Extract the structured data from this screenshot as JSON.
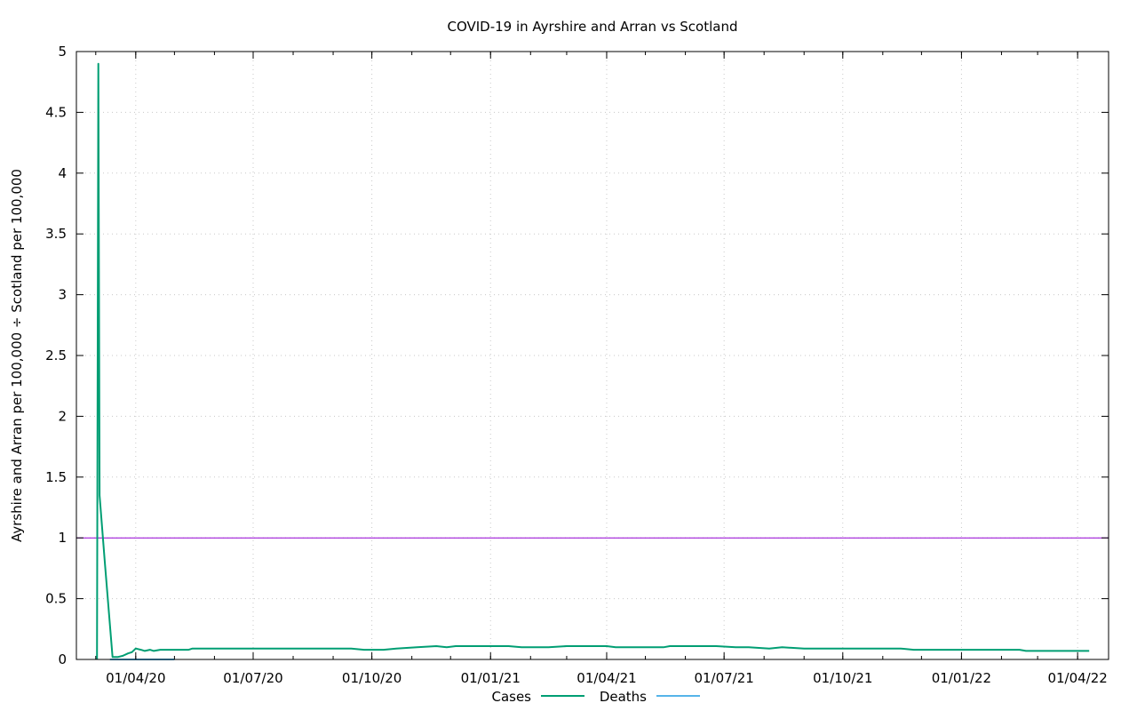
{
  "chart_data": {
    "type": "line",
    "title": "COVID-19 in Ayrshire and Arran vs Scotland",
    "xlabel": "",
    "ylabel": "Ayrshire and Arran per 100,000 ÷ Scotland per 100,000",
    "x_axis": "date",
    "xlim": [
      "2020-02-15",
      "2022-04-25"
    ],
    "ylim": [
      0,
      5
    ],
    "x_ticks": [
      {
        "date": "2020-04-01",
        "label": "01/04/20"
      },
      {
        "date": "2020-07-01",
        "label": "01/07/20"
      },
      {
        "date": "2020-10-01",
        "label": "01/10/20"
      },
      {
        "date": "2021-01-01",
        "label": "01/01/21"
      },
      {
        "date": "2021-04-01",
        "label": "01/04/21"
      },
      {
        "date": "2021-07-01",
        "label": "01/07/21"
      },
      {
        "date": "2021-10-01",
        "label": "01/10/21"
      },
      {
        "date": "2022-01-01",
        "label": "01/01/22"
      },
      {
        "date": "2022-04-01",
        "label": "01/04/22"
      }
    ],
    "y_ticks": [
      {
        "value": 0,
        "label": "0"
      },
      {
        "value": 0.5,
        "label": "0.5"
      },
      {
        "value": 1,
        "label": "1"
      },
      {
        "value": 1.5,
        "label": "1.5"
      },
      {
        "value": 2,
        "label": "2"
      },
      {
        "value": 2.5,
        "label": "2.5"
      },
      {
        "value": 3,
        "label": "3"
      },
      {
        "value": 3.5,
        "label": "3.5"
      },
      {
        "value": 4,
        "label": "4"
      },
      {
        "value": 4.5,
        "label": "4.5"
      },
      {
        "value": 5,
        "label": "5"
      }
    ],
    "grid": true,
    "legend_position": "bottom-center",
    "reference_line": {
      "y": 1,
      "color": "#9400d3"
    },
    "series": [
      {
        "name": "Cases",
        "color": "#009e73",
        "points": [
          [
            "2020-03-02",
            0
          ],
          [
            "2020-03-02",
            0.02
          ],
          [
            "2020-03-03",
            4.9
          ],
          [
            "2020-03-04",
            1.35
          ],
          [
            "2020-03-08",
            0.8
          ],
          [
            "2020-03-14",
            0.02
          ],
          [
            "2020-03-18",
            0.02
          ],
          [
            "2020-03-22",
            0.03
          ],
          [
            "2020-03-26",
            0.05
          ],
          [
            "2020-03-29",
            0.06
          ],
          [
            "2020-04-01",
            0.09
          ],
          [
            "2020-04-05",
            0.08
          ],
          [
            "2020-04-08",
            0.07
          ],
          [
            "2020-04-12",
            0.08
          ],
          [
            "2020-04-15",
            0.07
          ],
          [
            "2020-04-20",
            0.08
          ],
          [
            "2020-05-01",
            0.08
          ],
          [
            "2020-05-12",
            0.08
          ],
          [
            "2020-05-15",
            0.09
          ],
          [
            "2020-06-15",
            0.09
          ],
          [
            "2020-07-15",
            0.09
          ],
          [
            "2020-08-15",
            0.09
          ],
          [
            "2020-09-15",
            0.09
          ],
          [
            "2020-09-25",
            0.08
          ],
          [
            "2020-10-10",
            0.08
          ],
          [
            "2020-10-20",
            0.09
          ],
          [
            "2020-11-05",
            0.1
          ],
          [
            "2020-11-20",
            0.11
          ],
          [
            "2020-11-28",
            0.1
          ],
          [
            "2020-12-05",
            0.11
          ],
          [
            "2021-01-01",
            0.11
          ],
          [
            "2021-01-15",
            0.11
          ],
          [
            "2021-01-25",
            0.1
          ],
          [
            "2021-02-15",
            0.1
          ],
          [
            "2021-03-01",
            0.11
          ],
          [
            "2021-04-01",
            0.11
          ],
          [
            "2021-04-08",
            0.1
          ],
          [
            "2021-05-15",
            0.1
          ],
          [
            "2021-05-20",
            0.11
          ],
          [
            "2021-06-25",
            0.11
          ],
          [
            "2021-07-10",
            0.1
          ],
          [
            "2021-07-20",
            0.1
          ],
          [
            "2021-08-05",
            0.09
          ],
          [
            "2021-08-15",
            0.1
          ],
          [
            "2021-09-01",
            0.09
          ],
          [
            "2021-10-01",
            0.09
          ],
          [
            "2021-11-15",
            0.09
          ],
          [
            "2021-11-25",
            0.08
          ],
          [
            "2022-01-01",
            0.08
          ],
          [
            "2022-02-01",
            0.08
          ],
          [
            "2022-02-15",
            0.08
          ],
          [
            "2022-02-20",
            0.07
          ],
          [
            "2022-04-10",
            0.07
          ]
        ]
      },
      {
        "name": "Deaths",
        "color": "#56b4e9",
        "points": [
          [
            "2020-03-12",
            0
          ],
          [
            "2020-05-01",
            0
          ]
        ]
      }
    ]
  }
}
